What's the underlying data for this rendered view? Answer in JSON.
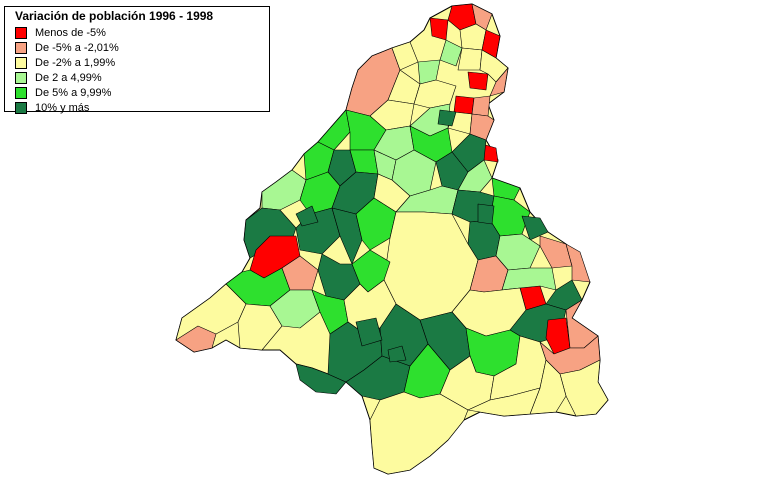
{
  "legend": {
    "title": "Variación de población 1996 - 1998",
    "items": [
      {
        "label": "Menos de -5%",
        "color": "#ff0000"
      },
      {
        "label": "De -5% a -2,01%",
        "color": "#f7a283"
      },
      {
        "label": "De -2% a 1,99%",
        "color": "#fdfb9f"
      },
      {
        "label": "De 2 a 4,99%",
        "color": "#a8f793"
      },
      {
        "label": "De 5% a 9,99%",
        "color": "#2ee02e"
      },
      {
        "label": "10% y más",
        "color": "#1b7a44"
      }
    ]
  }
}
